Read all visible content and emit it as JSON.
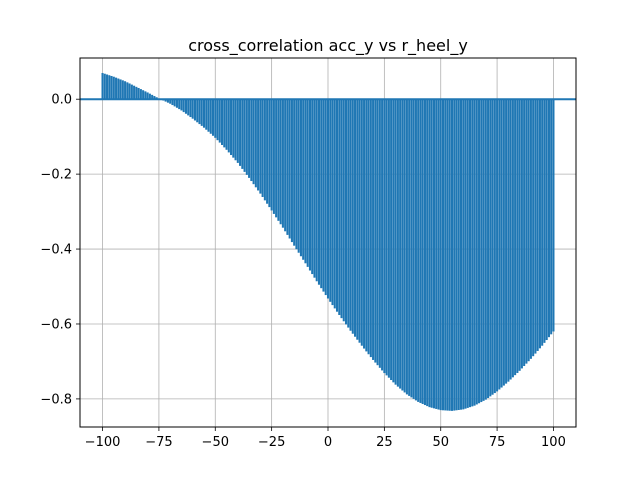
{
  "chart_data": {
    "type": "bar",
    "title": "cross_correlation acc_y vs r_heel_y",
    "xlabel": "",
    "ylabel": "",
    "xlim": [
      -110,
      110
    ],
    "ylim": [
      -0.875,
      0.11
    ],
    "grid": true,
    "bar_color": "#1f77b4",
    "baseline_color": "#1f77b4",
    "x_ticks": [
      -100,
      -75,
      -50,
      -25,
      0,
      25,
      50,
      75,
      100
    ],
    "x_tick_labels": [
      "−100",
      "−75",
      "−50",
      "−25",
      "0",
      "25",
      "50",
      "75",
      "100"
    ],
    "y_ticks": [
      0.0,
      -0.2,
      -0.4,
      -0.6,
      -0.8
    ],
    "y_tick_labels": [
      "0.0",
      "−0.2",
      "−0.4",
      "−0.6",
      "−0.8"
    ],
    "lags": [
      -100,
      -95,
      -90,
      -85,
      -80,
      -75,
      -70,
      -65,
      -60,
      -55,
      -50,
      -45,
      -40,
      -35,
      -30,
      -25,
      -20,
      -15,
      -10,
      -5,
      0,
      5,
      10,
      15,
      20,
      25,
      30,
      35,
      40,
      45,
      50,
      55,
      60,
      65,
      70,
      75,
      80,
      85,
      90,
      95,
      100
    ],
    "values": [
      0.07,
      0.06,
      0.048,
      0.033,
      0.018,
      0.002,
      -0.012,
      -0.03,
      -0.052,
      -0.076,
      -0.103,
      -0.135,
      -0.17,
      -0.21,
      -0.252,
      -0.297,
      -0.343,
      -0.391,
      -0.438,
      -0.486,
      -0.532,
      -0.576,
      -0.618,
      -0.658,
      -0.696,
      -0.731,
      -0.762,
      -0.788,
      -0.808,
      -0.822,
      -0.83,
      -0.832,
      -0.828,
      -0.818,
      -0.802,
      -0.78,
      -0.754,
      -0.725,
      -0.693,
      -0.658,
      -0.62
    ]
  }
}
